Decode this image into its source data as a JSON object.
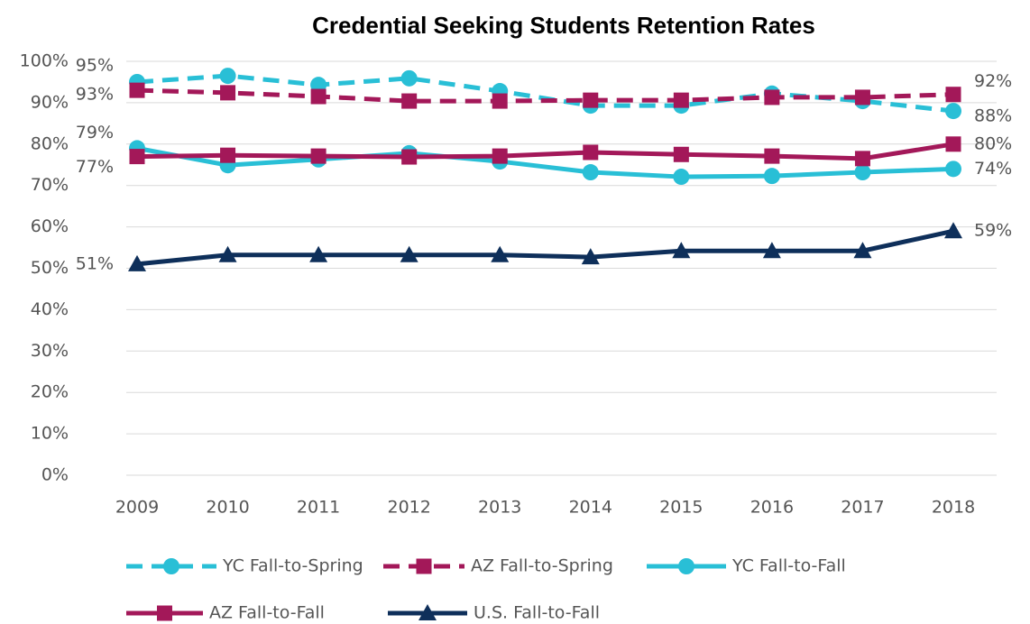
{
  "chart_data": {
    "type": "line",
    "title": "Credential Seeking Students Retention Rates",
    "categories": [
      "2009",
      "2010",
      "2011",
      "2012",
      "2013",
      "2014",
      "2015",
      "2016",
      "2017",
      "2018"
    ],
    "ylim": [
      0,
      100
    ],
    "yticks": [
      {
        "value": 0,
        "label": "0%"
      },
      {
        "value": 10,
        "label": "10%"
      },
      {
        "value": 20,
        "label": "20%"
      },
      {
        "value": 30,
        "label": "30%"
      },
      {
        "value": 40,
        "label": "40%"
      },
      {
        "value": 50,
        "label": "50%"
      },
      {
        "value": 60,
        "label": "60%"
      },
      {
        "value": 70,
        "label": "70%"
      },
      {
        "value": 80,
        "label": "80%"
      },
      {
        "value": 90,
        "label": "90%"
      },
      {
        "value": 100,
        "label": "100%"
      }
    ],
    "grid": true,
    "legend": "bottom",
    "series": [
      {
        "name": "YC Fall-to-Spring",
        "color": "#29bfd6",
        "dash": true,
        "marker": "circle",
        "values": [
          95,
          96.5,
          94.3,
          95.9,
          92.8,
          89.3,
          89.3,
          92.2,
          90.4,
          88
        ],
        "value_labels": [
          "95%",
          null,
          null,
          null,
          null,
          null,
          null,
          null,
          null,
          "88%"
        ]
      },
      {
        "name": "AZ Fall-to-Spring",
        "color": "#a31859",
        "dash": true,
        "marker": "square",
        "values": [
          93,
          92.4,
          91.5,
          90.4,
          90.4,
          90.6,
          90.6,
          91.3,
          91.3,
          92
        ],
        "value_labels": [
          "93%",
          null,
          null,
          null,
          null,
          null,
          null,
          null,
          null,
          "92%"
        ]
      },
      {
        "name": "YC Fall-to-Fall",
        "color": "#29bfd6",
        "dash": false,
        "marker": "circle",
        "values": [
          79,
          74.9,
          76.3,
          77.8,
          75.8,
          73.2,
          72.1,
          72.3,
          73.2,
          74
        ],
        "value_labels": [
          "79%",
          null,
          null,
          null,
          null,
          null,
          null,
          null,
          null,
          "74%"
        ]
      },
      {
        "name": "AZ Fall-to-Fall",
        "color": "#a31859",
        "dash": false,
        "marker": "square",
        "values": [
          77,
          77.3,
          77.1,
          76.9,
          77.1,
          78,
          77.5,
          77.1,
          76.5,
          80
        ],
        "value_labels": [
          "77%",
          null,
          null,
          null,
          null,
          null,
          null,
          null,
          null,
          "80%"
        ]
      },
      {
        "name": "U.S. Fall-to-Fall",
        "color": "#0e2f5a",
        "dash": false,
        "marker": "triangle",
        "values": [
          51,
          53.2,
          53.2,
          53.2,
          53.2,
          52.7,
          54.2,
          54.2,
          54.2,
          59
        ],
        "value_labels": [
          "51%",
          null,
          null,
          null,
          null,
          null,
          null,
          null,
          null,
          "59%"
        ]
      }
    ]
  }
}
